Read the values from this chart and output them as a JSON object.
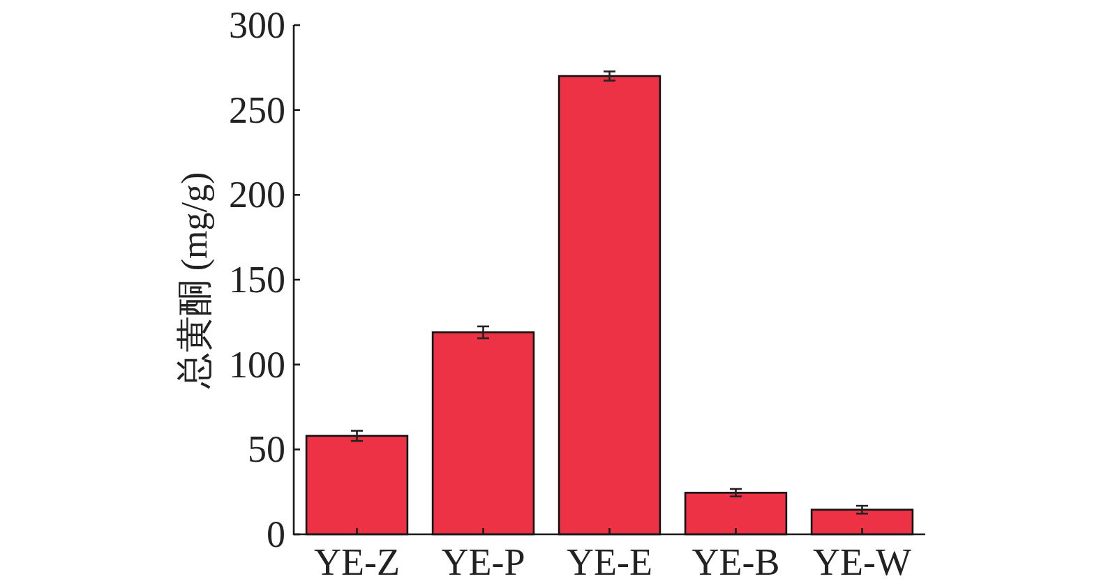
{
  "chart_data": {
    "type": "bar",
    "ylabel": "总黄酮 (mg/g)",
    "categories": [
      "YE-Z",
      "YE-P",
      "YE-E",
      "YE-B",
      "YE-W"
    ],
    "values": [
      58,
      119,
      270,
      24.5,
      14.5
    ],
    "errors": [
      3,
      3.5,
      2.7,
      2.2,
      2.3
    ],
    "color": "#ed3245",
    "ylim": [
      0,
      300
    ],
    "yticks": [
      0,
      50,
      100,
      150,
      200,
      250,
      300
    ]
  }
}
